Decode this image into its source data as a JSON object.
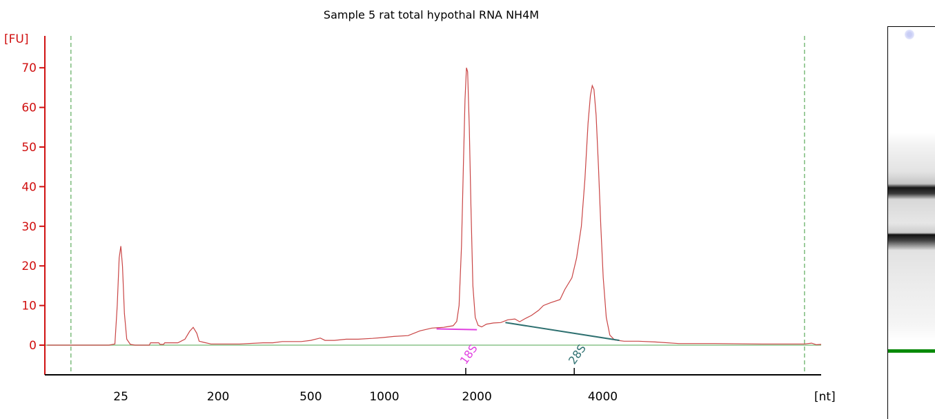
{
  "chart_data": {
    "type": "line",
    "title": "Sample 5 rat total hypothal RNA NH4M",
    "ylabel": "[FU]",
    "xlabel": "[nt]",
    "ylim": [
      -7,
      78
    ],
    "yticks": [
      0,
      10,
      20,
      30,
      40,
      50,
      60,
      70
    ],
    "xticks": [
      {
        "label": "25",
        "t": 50
      },
      {
        "label": "200",
        "t": 91
      },
      {
        "label": "500",
        "t": 130
      },
      {
        "label": "1000",
        "t": 161
      },
      {
        "label": "2000",
        "t": 200
      },
      {
        "label": "4000",
        "t": 253
      }
    ],
    "time_range": [
      18,
      345
    ],
    "series": [
      {
        "color": "#c94444",
        "points": [
          [
            19,
            0
          ],
          [
            45,
            0
          ],
          [
            47.5,
            0.3
          ],
          [
            48.5,
            10
          ],
          [
            49.3,
            22
          ],
          [
            50,
            25
          ],
          [
            50.7,
            20
          ],
          [
            51.5,
            8
          ],
          [
            52.5,
            1.5
          ],
          [
            54,
            0.2
          ],
          [
            56,
            0
          ],
          [
            62,
            0
          ],
          [
            62.5,
            0.6
          ],
          [
            66,
            0.6
          ],
          [
            66.5,
            0.2
          ],
          [
            68,
            0.2
          ],
          [
            68.5,
            0.6
          ],
          [
            74,
            0.6
          ],
          [
            77,
            1.5
          ],
          [
            79,
            3.5
          ],
          [
            80.5,
            4.5
          ],
          [
            82,
            3
          ],
          [
            83,
            1
          ],
          [
            85,
            0.7
          ],
          [
            88,
            0.3
          ],
          [
            100,
            0.3
          ],
          [
            110,
            0.6
          ],
          [
            114,
            0.6
          ],
          [
            118,
            0.9
          ],
          [
            126,
            0.9
          ],
          [
            130,
            1.2
          ],
          [
            134,
            1.8
          ],
          [
            136,
            1.2
          ],
          [
            140,
            1.2
          ],
          [
            145,
            1.5
          ],
          [
            150,
            1.5
          ],
          [
            156,
            1.7
          ],
          [
            160,
            1.9
          ],
          [
            165,
            2.2
          ],
          [
            171,
            2.4
          ],
          [
            176,
            3.6
          ],
          [
            181,
            4.3
          ],
          [
            186,
            4.5
          ],
          [
            188,
            4.7
          ],
          [
            190,
            4.9
          ],
          [
            191.5,
            6
          ],
          [
            192.5,
            10
          ],
          [
            193.5,
            25
          ],
          [
            194.3,
            45
          ],
          [
            195,
            62
          ],
          [
            195.6,
            70
          ],
          [
            196.1,
            69
          ],
          [
            196.8,
            55
          ],
          [
            197.5,
            35
          ],
          [
            198.3,
            15
          ],
          [
            199.3,
            7
          ],
          [
            200.5,
            5
          ],
          [
            202,
            4.6
          ],
          [
            204,
            5.3
          ],
          [
            207,
            5.6
          ],
          [
            210,
            5.7
          ],
          [
            213,
            6.4
          ],
          [
            216,
            6.6
          ],
          [
            218,
            5.9
          ],
          [
            220,
            6.6
          ],
          [
            223,
            7.5
          ],
          [
            226,
            8.8
          ],
          [
            228,
            10
          ],
          [
            231,
            10.7
          ],
          [
            235,
            11.5
          ],
          [
            237,
            14
          ],
          [
            240,
            17
          ],
          [
            242,
            22
          ],
          [
            244,
            30
          ],
          [
            245.5,
            42
          ],
          [
            246.8,
            56
          ],
          [
            247.8,
            63
          ],
          [
            248.6,
            65.5
          ],
          [
            249.3,
            64.5
          ],
          [
            250.2,
            58
          ],
          [
            251.2,
            45
          ],
          [
            252.2,
            30
          ],
          [
            253.2,
            17
          ],
          [
            254.5,
            7
          ],
          [
            256,
            2.5
          ],
          [
            258,
            1.3
          ],
          [
            262,
            1
          ],
          [
            268,
            1
          ],
          [
            275,
            0.8
          ],
          [
            285,
            0.4
          ],
          [
            300,
            0.4
          ],
          [
            320,
            0.3
          ],
          [
            338,
            0.3
          ],
          [
            341,
            0.5
          ],
          [
            343,
            0.1
          ],
          [
            345,
            0.2
          ]
        ]
      }
    ],
    "baseline_color": "#88c488",
    "window_start": 29,
    "window_end": 338,
    "peaks": [
      {
        "label": "18S",
        "color": "#e040e0",
        "t": 195.3,
        "base": [
          [
            183,
            4.1
          ],
          [
            200,
            3.9
          ]
        ]
      },
      {
        "label": "28S",
        "color": "#2e7070",
        "t": 241,
        "base": [
          [
            212,
            5.7
          ],
          [
            260,
            1.2
          ]
        ]
      }
    ]
  }
}
